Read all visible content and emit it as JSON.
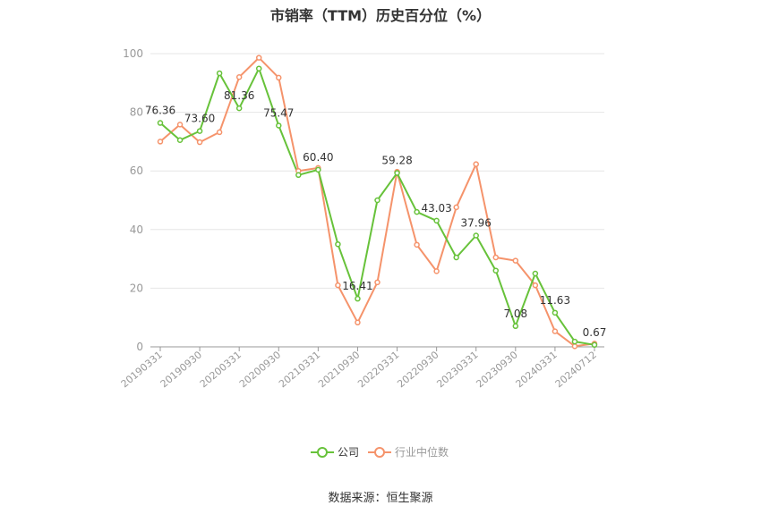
{
  "chart_data": {
    "type": "line",
    "title": "市销率（TTM）历史百分位（%）",
    "ylim": [
      0,
      100
    ],
    "yticks": [
      0,
      20,
      40,
      60,
      80,
      100
    ],
    "x_tick_labels": [
      "20190331",
      "20190930",
      "20200331",
      "20200930",
      "20210331",
      "20210930",
      "20220331",
      "20220930",
      "20230331",
      "20230930",
      "20240331",
      "20240712"
    ],
    "grid": true,
    "legend_position": "bottom",
    "series": [
      {
        "name": "公司",
        "color": "#67c23a",
        "values": [
          76.36,
          70.5,
          73.6,
          93.3,
          81.36,
          94.9,
          75.47,
          58.6,
          60.4,
          35.0,
          16.41,
          50.0,
          59.28,
          46.0,
          43.03,
          30.5,
          37.96,
          26.0,
          7.08,
          25.0,
          11.63,
          1.8,
          0.67
        ],
        "point_labels": [
          {
            "index": 0,
            "text": "76.36"
          },
          {
            "index": 2,
            "text": "73.60"
          },
          {
            "index": 4,
            "text": "81.36"
          },
          {
            "index": 6,
            "text": "75.47"
          },
          {
            "index": 8,
            "text": "60.40"
          },
          {
            "index": 10,
            "text": "16.41"
          },
          {
            "index": 12,
            "text": "59.28"
          },
          {
            "index": 14,
            "text": "43.03"
          },
          {
            "index": 16,
            "text": "37.96"
          },
          {
            "index": 18,
            "text": "7.08"
          },
          {
            "index": 20,
            "text": "11.63"
          },
          {
            "index": 22,
            "text": "0.67"
          }
        ]
      },
      {
        "name": "行业中位数",
        "color": "#f5936b",
        "values": [
          70.0,
          75.8,
          69.8,
          73.2,
          92.0,
          98.6,
          91.8,
          60.0,
          61.0,
          21.0,
          8.3,
          22.0,
          59.7,
          34.8,
          25.8,
          47.6,
          62.3,
          30.5,
          29.4,
          21.0,
          5.3,
          0.2,
          1.1
        ]
      }
    ]
  },
  "legend": [
    {
      "label": "公司",
      "color": "#67c23a"
    },
    {
      "label": "行业中位数",
      "color": "#f5936b"
    }
  ],
  "source": "数据来源：恒生聚源"
}
